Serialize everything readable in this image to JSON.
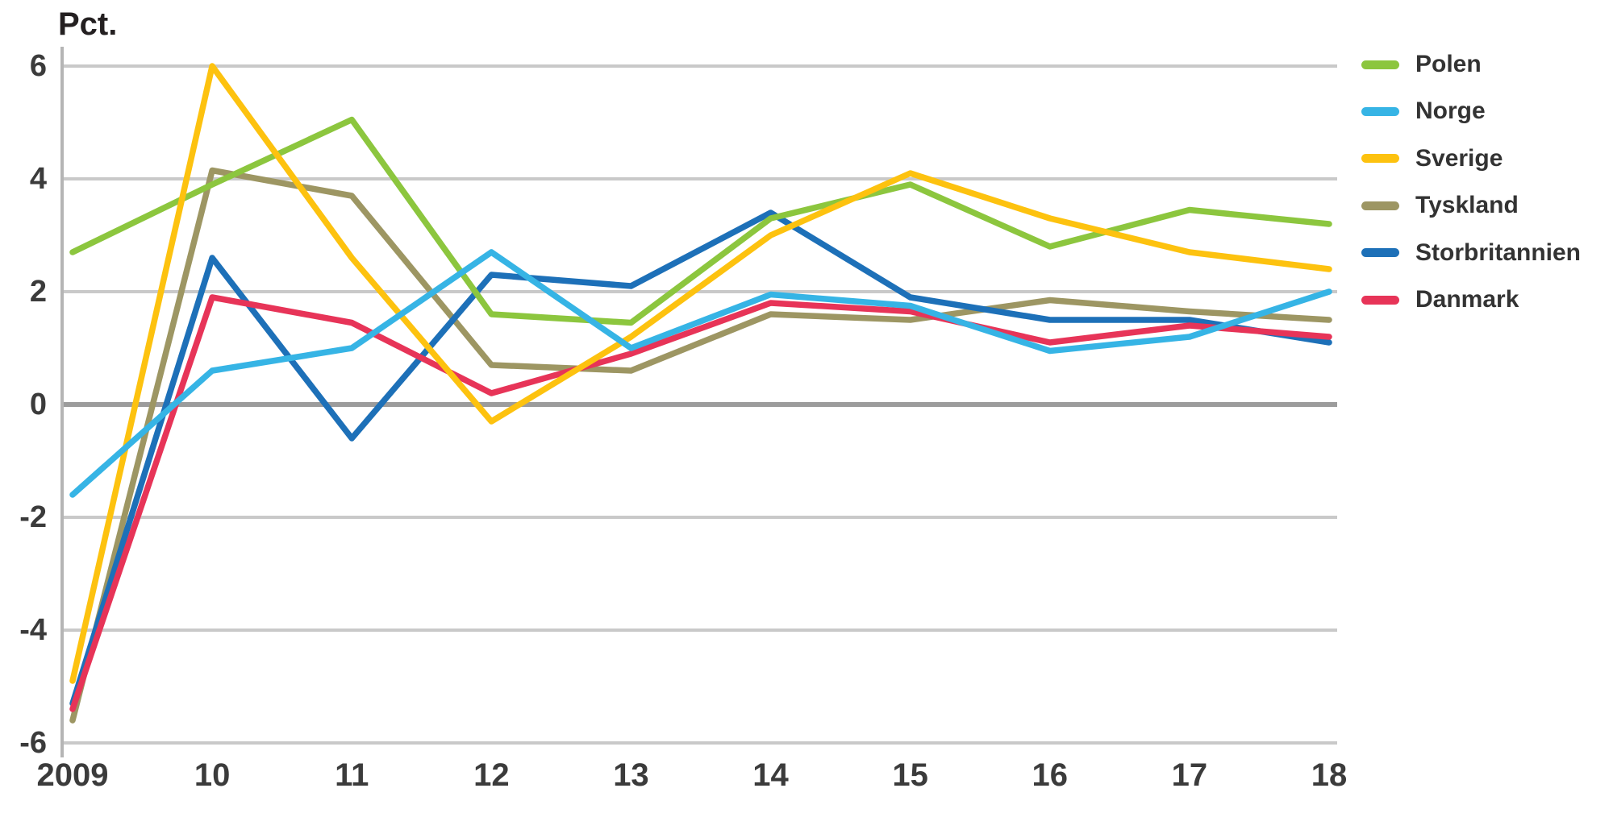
{
  "chart": {
    "axis_title": "Pct."
  },
  "chart_data": {
    "type": "line",
    "title": "",
    "ylabel": "Pct.",
    "xlabel": "",
    "ylim": [
      -6,
      6
    ],
    "grid": true,
    "legend_position": "right",
    "colors": {
      "grid": "#c9c9c9",
      "zero_line": "#9c9c9c",
      "axis": "#b5b5b5",
      "text": "#3b3b3b"
    },
    "x_tick_labels": [
      "2009",
      "10",
      "11",
      "12",
      "13",
      "14",
      "15",
      "16",
      "17",
      "18"
    ],
    "y_ticks": [
      {
        "label": "6",
        "value": 6
      },
      {
        "label": "4",
        "value": 4
      },
      {
        "label": "2",
        "value": 2
      },
      {
        "label": "0",
        "value": 0
      },
      {
        "label": "-2",
        "value": -2
      },
      {
        "label": "-4",
        "value": -4
      },
      {
        "label": "-6",
        "value": -6
      }
    ],
    "series": [
      {
        "name": "Polen",
        "color": "#8cc63e",
        "values": [
          2.7,
          3.9,
          5.05,
          1.6,
          1.45,
          3.3,
          3.9,
          2.8,
          3.45,
          3.2
        ]
      },
      {
        "name": "Norge",
        "color": "#36b4e5",
        "values": [
          -1.6,
          0.6,
          1.0,
          2.7,
          1.0,
          1.95,
          1.75,
          0.95,
          1.2,
          2.0
        ]
      },
      {
        "name": "Sverige",
        "color": "#fdc20f",
        "values": [
          -4.9,
          6.0,
          2.6,
          -0.3,
          1.2,
          3.0,
          4.1,
          3.3,
          2.7,
          2.4
        ]
      },
      {
        "name": "Tyskland",
        "color": "#9d9663",
        "values": [
          -5.6,
          4.15,
          3.7,
          0.7,
          0.6,
          1.6,
          1.5,
          1.85,
          1.65,
          1.5
        ]
      },
      {
        "name": "Storbritannien",
        "color": "#1d70b8",
        "values": [
          -5.3,
          2.6,
          -0.6,
          2.3,
          2.1,
          3.4,
          1.9,
          1.5,
          1.5,
          1.1
        ]
      },
      {
        "name": "Danmark",
        "color": "#e73458",
        "values": [
          -5.4,
          1.9,
          1.45,
          0.2,
          0.9,
          1.8,
          1.65,
          1.1,
          1.4,
          1.2
        ]
      }
    ]
  }
}
